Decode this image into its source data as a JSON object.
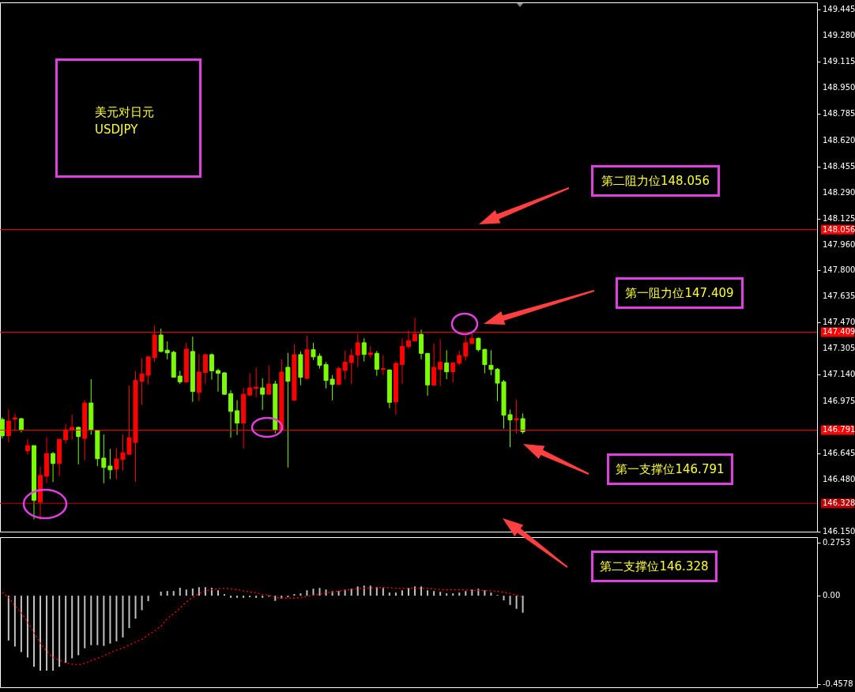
{
  "chart_data": [
    {
      "type": "candlestick",
      "title": "美元对日元",
      "subtitle": "USDJPY",
      "categories": [
        null,
        null,
        null,
        null,
        null,
        null,
        null,
        null,
        null,
        null,
        null,
        null,
        null,
        null,
        null,
        null,
        null,
        null,
        null,
        null,
        null,
        null,
        null,
        null,
        null,
        null,
        null,
        null,
        null,
        null,
        null,
        null,
        null,
        null,
        null,
        null,
        null,
        null,
        null,
        null,
        null,
        null,
        null,
        null,
        null,
        null,
        null,
        null,
        null,
        null,
        null,
        null,
        null,
        null,
        null,
        null,
        null,
        null,
        null,
        null,
        null,
        null,
        null,
        null,
        null,
        null,
        null,
        null,
        null,
        null,
        null,
        null,
        null,
        null,
        null,
        null,
        null,
        null,
        null,
        null,
        null,
        null,
        null,
        null,
        null,
        null,
        null,
        null,
        null,
        null,
        null,
        null,
        null,
        null,
        null,
        null,
        null,
        null,
        null,
        null,
        null,
        null,
        null,
        null,
        null,
        null,
        null,
        null,
        null,
        null,
        null,
        null,
        null,
        null,
        null,
        null,
        null,
        null,
        null,
        null,
        null,
        null,
        null,
        null,
        null,
        null,
        null,
        null,
        null
      ],
      "ohlc": [
        [
          146.858,
          146.871,
          146.738,
          146.755
        ],
        [
          146.755,
          146.921,
          146.713,
          146.848
        ],
        [
          146.86,
          146.896,
          146.785,
          146.868
        ],
        [
          146.863,
          146.868,
          146.776,
          146.793
        ],
        [
          146.66,
          146.733,
          146.638,
          146.693
        ],
        [
          146.693,
          146.693,
          146.228,
          146.348
        ],
        [
          146.336,
          146.559,
          146.223,
          146.505
        ],
        [
          146.5,
          146.746,
          146.456,
          146.643
        ],
        [
          146.643,
          146.652,
          146.464,
          146.58
        ],
        [
          146.58,
          146.733,
          146.5,
          146.733
        ],
        [
          146.73,
          146.83,
          146.705,
          146.793
        ],
        [
          146.793,
          146.888,
          146.73,
          146.808
        ],
        [
          146.808,
          146.813,
          146.575,
          146.75
        ],
        [
          146.738,
          146.979,
          146.6,
          146.962
        ],
        [
          146.962,
          147.112,
          146.763,
          146.793
        ],
        [
          146.788,
          146.788,
          146.564,
          146.61
        ],
        [
          146.614,
          146.763,
          146.456,
          146.555
        ],
        [
          146.564,
          146.672,
          146.481,
          146.54
        ],
        [
          146.544,
          146.677,
          146.481,
          146.609
        ],
        [
          146.605,
          146.763,
          146.535,
          146.648
        ],
        [
          146.638,
          147.071,
          146.638,
          146.743
        ],
        [
          146.713,
          147.162,
          146.464,
          147.104
        ],
        [
          147.099,
          147.245,
          146.949,
          147.145
        ],
        [
          147.137,
          147.257,
          147.079,
          147.253
        ],
        [
          147.248,
          147.45,
          147.223,
          147.391
        ],
        [
          147.391,
          147.431,
          147.282,
          147.287
        ],
        [
          147.295,
          147.35,
          147.237,
          147.278
        ],
        [
          147.282,
          147.292,
          147.125,
          147.125
        ],
        [
          147.132,
          147.165,
          147.082,
          147.095
        ],
        [
          147.094,
          147.341,
          147.09,
          147.302
        ],
        [
          147.287,
          147.381,
          146.969,
          147.034
        ],
        [
          147.029,
          147.27,
          146.974,
          147.157
        ],
        [
          147.154,
          147.267,
          147.082,
          147.267
        ],
        [
          147.267,
          147.275,
          147.109,
          147.165
        ],
        [
          147.167,
          147.179,
          147.034,
          147.149
        ],
        [
          147.152,
          147.157,
          147.012,
          147.017
        ],
        [
          147.021,
          147.042,
          146.743,
          146.909
        ],
        [
          146.913,
          146.979,
          146.76,
          146.835
        ],
        [
          146.835,
          147.057,
          146.675,
          147.017
        ],
        [
          147.012,
          147.149,
          147.004,
          147.057
        ],
        [
          147.054,
          147.184,
          146.999,
          147.062
        ],
        [
          147.057,
          147.117,
          146.918,
          147.017
        ],
        [
          147.017,
          147.199,
          147.017,
          147.082
        ],
        [
          147.082,
          147.102,
          146.771,
          146.793
        ],
        [
          146.793,
          147.237,
          146.793,
          147.157
        ],
        [
          147.187,
          147.278,
          146.555,
          147.099
        ],
        [
          146.979,
          147.332,
          146.979,
          147.267
        ],
        [
          147.267,
          147.287,
          147.074,
          147.124
        ],
        [
          147.117,
          147.386,
          147.112,
          147.298
        ],
        [
          147.298,
          147.341,
          147.233,
          147.253
        ],
        [
          147.257,
          147.275,
          147.179,
          147.2
        ],
        [
          147.204,
          147.22,
          147.054,
          147.104
        ],
        [
          147.112,
          147.137,
          146.979,
          147.079
        ],
        [
          147.079,
          147.192,
          147.079,
          147.179
        ],
        [
          147.167,
          147.292,
          147.109,
          147.22
        ],
        [
          147.217,
          147.303,
          147.082,
          147.262
        ],
        [
          147.265,
          147.398,
          147.187,
          147.342
        ],
        [
          147.342,
          147.37,
          147.224,
          147.268
        ],
        [
          147.267,
          147.32,
          147.245,
          147.278
        ],
        [
          147.275,
          147.29,
          147.134,
          147.175
        ],
        [
          147.174,
          147.262,
          147.137,
          147.179
        ],
        [
          147.17,
          147.175,
          146.929,
          146.966
        ],
        [
          146.969,
          147.225,
          146.888,
          147.212
        ],
        [
          147.204,
          147.37,
          147.082,
          147.32
        ],
        [
          147.318,
          147.42,
          147.303,
          147.355
        ],
        [
          147.353,
          147.5,
          147.353,
          147.396
        ],
        [
          147.395,
          147.425,
          147.237,
          147.275
        ],
        [
          147.275,
          147.275,
          147.008,
          147.076
        ],
        [
          147.074,
          147.337,
          147.069,
          147.187
        ],
        [
          147.174,
          147.365,
          147.067,
          147.22
        ],
        [
          147.215,
          147.295,
          147.112,
          147.159
        ],
        [
          147.159,
          147.215,
          147.092,
          147.215
        ],
        [
          147.212,
          147.292,
          147.199,
          147.262
        ],
        [
          147.257,
          147.386,
          147.229,
          147.342
        ],
        [
          147.337,
          147.403,
          147.337,
          147.37
        ],
        [
          147.37,
          147.375,
          147.287,
          147.298
        ],
        [
          147.3,
          147.303,
          147.149,
          147.204
        ],
        [
          147.2,
          147.295,
          147.137,
          147.174
        ],
        [
          147.175,
          147.182,
          146.974,
          147.087
        ],
        [
          147.096,
          147.107,
          146.8,
          146.885
        ],
        [
          146.888,
          146.921,
          146.683,
          146.855
        ],
        [
          146.855,
          146.983,
          146.768,
          146.863
        ],
        [
          146.863,
          146.896,
          146.768,
          146.78
        ],
        null,
        null,
        null,
        null,
        null,
        null,
        null,
        null,
        null,
        null,
        null,
        null,
        null,
        null,
        null,
        null,
        null,
        null,
        null,
        null,
        null,
        null,
        null,
        null,
        null,
        null,
        null,
        null,
        null,
        null,
        null,
        null,
        null,
        null,
        null,
        null,
        null,
        null,
        null,
        null,
        null,
        null,
        null,
        null,
        null,
        null
      ],
      "ylim": [
        146.15,
        149.49
      ],
      "yticks": [
        149.445,
        {
          "value": 149.28,
          "label": "149.280"
        },
        149.115,
        {
          "value": 148.95,
          "label": "148.950"
        },
        148.785,
        {
          "value": 148.62,
          "label": "148.620"
        },
        148.455,
        {
          "value": 148.29,
          "label": "148.290"
        },
        148.125,
        {
          "value": 147.96,
          "label": "147.960"
        },
        {
          "value": 147.8,
          "label": "147.800"
        },
        147.635,
        {
          "value": 147.47,
          "label": "147.470"
        },
        147.305,
        {
          "value": 147.14,
          "label": "147.140"
        },
        146.975,
        146.645,
        {
          "value": 146.48,
          "label": "146.480"
        },
        {
          "value": 146.15,
          "label": "146.150"
        }
      ],
      "ref_lines": [
        {
          "axis": "y",
          "value": 148.056,
          "label": "148.056",
          "color": "#ff0000"
        },
        {
          "axis": "y",
          "value": 147.409,
          "label": "147.409",
          "color": "#ff0000"
        },
        {
          "axis": "y",
          "value": 146.791,
          "label": "146.791",
          "color": "#ff0000"
        },
        {
          "axis": "y",
          "value": 146.328,
          "label": "146.328",
          "color": "#c00000"
        }
      ],
      "annotations": [
        "第二阻力位148.056",
        "第一阻力位147.409",
        "第一支撑位146.791",
        "第二支撑位146.328"
      ],
      "tick_labels": "y"
    },
    {
      "type": "bar",
      "categories": [
        null,
        null,
        null,
        null,
        null,
        null,
        null,
        null,
        null,
        null,
        null,
        null,
        null,
        null,
        null,
        null,
        null,
        null,
        null,
        null,
        null,
        null,
        null,
        null,
        null,
        null,
        null,
        null,
        null,
        null,
        null,
        null,
        null,
        null,
        null,
        null,
        null,
        null,
        null,
        null,
        null,
        null,
        null,
        null,
        null,
        null,
        null,
        null,
        null,
        null,
        null,
        null,
        null,
        null,
        null,
        null,
        null,
        null,
        null,
        null,
        null,
        null,
        null,
        null,
        null,
        null,
        null,
        null,
        null,
        null,
        null,
        null,
        null,
        null,
        null,
        null,
        null,
        null,
        null,
        null,
        null,
        null,
        null,
        null,
        null,
        null,
        null,
        null,
        null,
        null,
        null,
        null,
        null,
        null,
        null,
        null,
        null,
        null,
        null,
        null,
        null,
        null,
        null,
        null,
        null,
        null,
        null,
        null,
        null,
        null,
        null,
        null,
        null,
        null,
        null,
        null,
        null,
        null,
        null,
        null,
        null,
        null,
        null,
        null,
        null,
        null,
        null,
        null,
        null
      ],
      "series": [
        {
          "type": "bar",
          "color": "#c0c0c0",
          "values": [
            null,
            -0.232,
            -0.263,
            -0.292,
            -0.32,
            -0.368,
            -0.388,
            -0.388,
            -0.388,
            -0.368,
            -0.348,
            -0.324,
            -0.308,
            -0.272,
            -0.256,
            -0.256,
            -0.26,
            -0.248,
            -0.236,
            -0.216,
            -0.168,
            -0.119,
            -0.075,
            -0.028,
            null,
            0.021,
            0.024,
            0.024,
            0.041,
            0.032,
            0.037,
            0.044,
            0.044,
            0.041,
            0.028,
            0.008,
            -0.011,
            -0.011,
            -0.011,
            -0.008,
            -0.011,
            -0.011,
            -0.005,
            -0.027,
            -0.016,
            -0.008,
            0.008,
            0.012,
            0.028,
            0.036,
            0.04,
            0.032,
            0.024,
            0.024,
            0.032,
            0.036,
            0.048,
            0.052,
            0.052,
            0.044,
            0.04,
            0.016,
            0.016,
            0.028,
            0.04,
            0.048,
            0.048,
            0.028,
            0.024,
            0.02,
            0.012,
            0.012,
            0.016,
            0.024,
            0.032,
            0.036,
            0.028,
            0.016,
            0.004,
            -0.024,
            -0.048,
            -0.068,
            -0.088,
            null,
            null,
            null,
            null,
            null,
            null,
            null,
            null,
            null,
            null,
            null,
            null,
            null,
            null,
            null,
            null,
            null,
            null,
            null,
            null,
            null,
            null,
            null,
            null,
            null,
            null,
            null,
            null,
            null,
            null,
            null,
            null,
            null,
            null,
            null,
            null,
            null,
            null,
            null,
            null,
            null,
            null,
            null,
            null,
            null,
            null
          ]
        },
        {
          "type": "line",
          "color": "#ff0000",
          "line_style": "dotted",
          "values": [
            0.017,
            -0.008,
            -0.052,
            -0.088,
            -0.136,
            -0.192,
            -0.246,
            -0.286,
            -0.319,
            -0.334,
            -0.347,
            -0.355,
            -0.358,
            -0.35,
            -0.336,
            -0.324,
            -0.311,
            -0.295,
            -0.282,
            -0.272,
            -0.256,
            -0.239,
            -0.226,
            -0.203,
            -0.182,
            -0.159,
            -0.119,
            -0.092,
            -0.065,
            -0.032,
            -0.008,
            0.011,
            0.024,
            0.031,
            0.036,
            0.039,
            0.035,
            0.031,
            0.025,
            0.019,
            0.015,
            0.007,
            0.003,
            -0.008,
            -0.013,
            -0.013,
            -0.013,
            -0.009,
            -0.004,
            0.003,
            0.009,
            0.015,
            0.019,
            0.024,
            0.029,
            0.032,
            0.036,
            0.039,
            0.04,
            0.041,
            0.043,
            0.041,
            0.039,
            0.039,
            0.039,
            0.039,
            0.039,
            0.039,
            0.035,
            0.031,
            0.031,
            0.031,
            0.031,
            0.031,
            0.028,
            0.027,
            0.027,
            0.025,
            0.023,
            0.017,
            0.012,
            0.003,
            -0.008,
            null,
            null,
            null,
            null,
            null,
            null,
            null,
            null,
            null,
            null,
            null,
            null,
            null,
            null,
            null,
            null,
            null,
            null,
            null,
            null,
            null,
            null,
            null,
            null,
            null,
            null,
            null,
            null,
            null,
            null,
            null,
            null,
            null,
            null,
            null,
            null,
            null,
            null,
            null,
            null,
            null,
            null,
            null,
            null,
            null,
            null
          ]
        }
      ],
      "ylim": [
        -0.474,
        0.303
      ],
      "yticks": [
        0.2753,
        {
          "value": 0,
          "label": "0.00"
        },
        -0.4578
      ],
      "tick_labels": "y"
    }
  ]
}
